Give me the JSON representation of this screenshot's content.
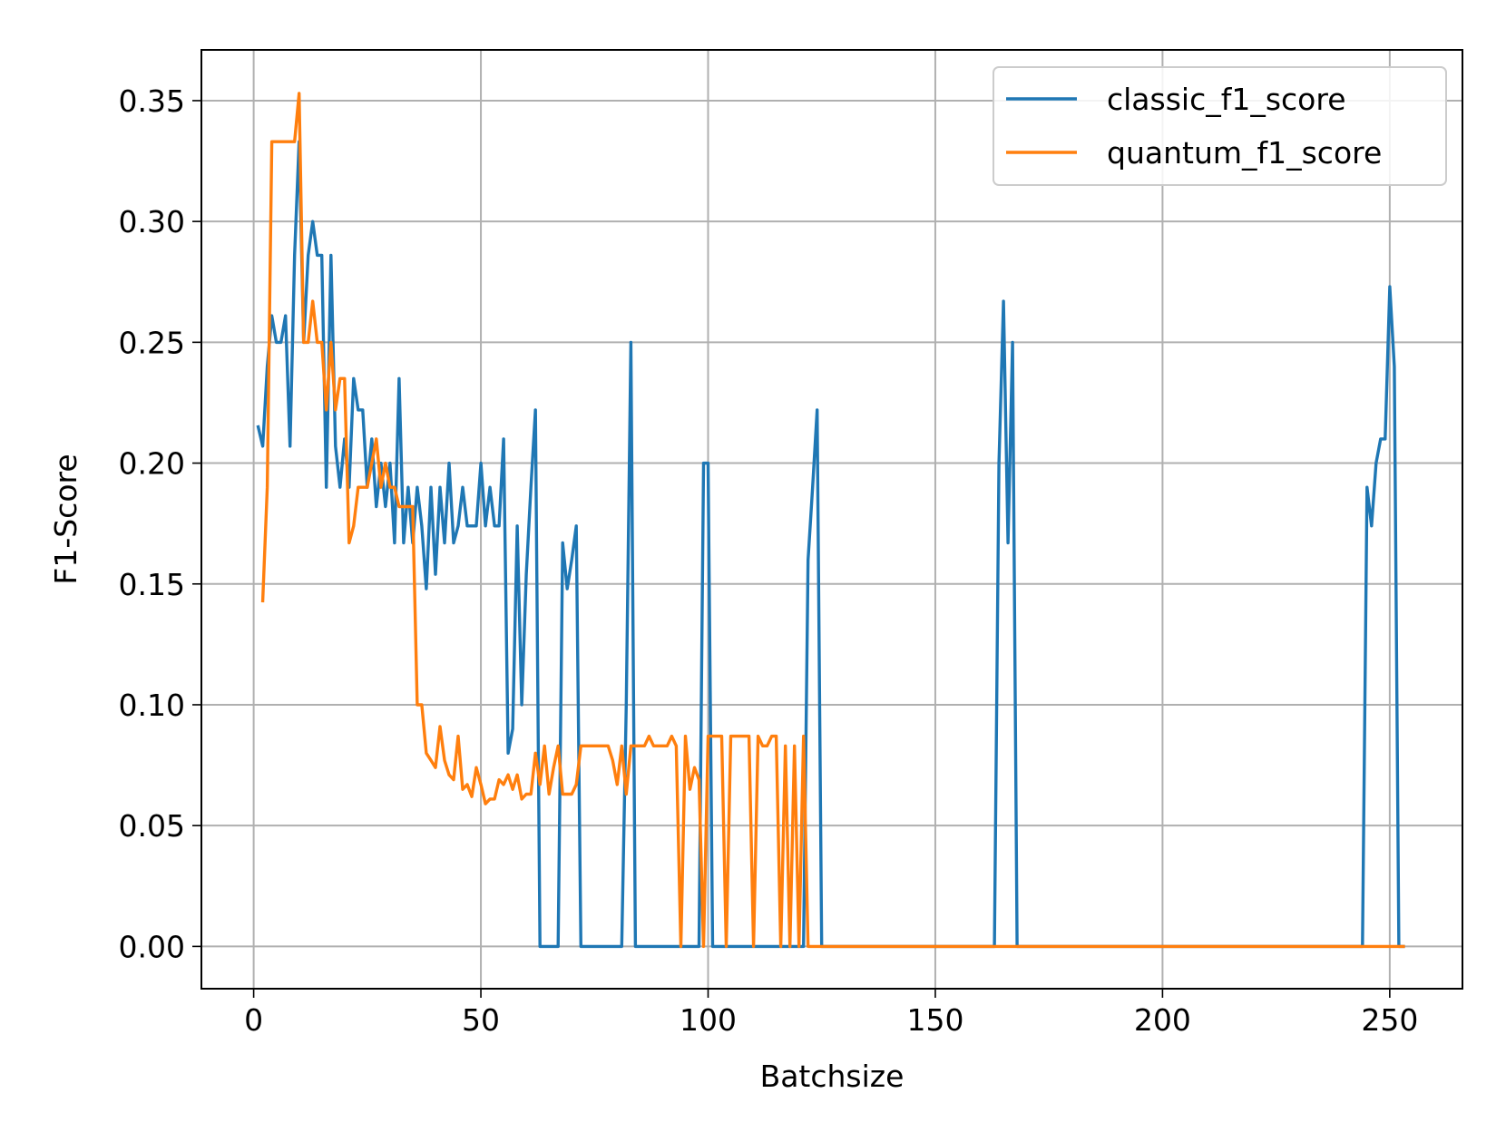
{
  "chart_data": {
    "type": "line",
    "title": "",
    "xlabel": "Batchsize",
    "ylabel": "F1-Score",
    "xlim": [
      -11.5,
      266
    ],
    "ylim": [
      -0.0175,
      0.371
    ],
    "xticks": [
      0,
      50,
      100,
      150,
      200,
      250
    ],
    "xtick_labels": [
      "0",
      "50",
      "100",
      "150",
      "200",
      "250"
    ],
    "yticks": [
      0.0,
      0.05,
      0.1,
      0.15,
      0.2,
      0.25,
      0.3,
      0.35
    ],
    "ytick_labels": [
      "0.00",
      "0.05",
      "0.10",
      "0.15",
      "0.20",
      "0.25",
      "0.30",
      "0.35"
    ],
    "grid": true,
    "legend_position": "top-right",
    "series": [
      {
        "name": "classic_f1_score",
        "color": "#1f77b4",
        "x": [
          1,
          2,
          3,
          4,
          5,
          6,
          7,
          8,
          9,
          10,
          11,
          12,
          13,
          14,
          15,
          16,
          17,
          18,
          19,
          20,
          21,
          22,
          23,
          24,
          25,
          26,
          27,
          28,
          29,
          30,
          31,
          32,
          33,
          34,
          35,
          36,
          37,
          38,
          39,
          40,
          41,
          42,
          43,
          44,
          45,
          46,
          47,
          48,
          49,
          50,
          51,
          52,
          53,
          54,
          55,
          56,
          57,
          58,
          59,
          60,
          61,
          62,
          63,
          64,
          65,
          66,
          67,
          68,
          69,
          70,
          71,
          72,
          73,
          80,
          81,
          82,
          83,
          84,
          85,
          98,
          99,
          100,
          101,
          102,
          121,
          122,
          123,
          124,
          125,
          126,
          163,
          164,
          165,
          166,
          167,
          168,
          244,
          245,
          246,
          247,
          248,
          249,
          250,
          251,
          252,
          253
        ],
        "y": [
          0.215,
          0.207,
          0.24,
          0.261,
          0.25,
          0.25,
          0.261,
          0.207,
          0.286,
          0.333,
          0.25,
          0.286,
          0.3,
          0.286,
          0.286,
          0.19,
          0.286,
          0.207,
          0.19,
          0.21,
          0.19,
          0.235,
          0.222,
          0.222,
          0.19,
          0.21,
          0.182,
          0.2,
          0.182,
          0.2,
          0.167,
          0.235,
          0.167,
          0.19,
          0.167,
          0.19,
          0.174,
          0.148,
          0.19,
          0.154,
          0.19,
          0.167,
          0.2,
          0.167,
          0.174,
          0.19,
          0.174,
          0.174,
          0.174,
          0.2,
          0.174,
          0.19,
          0.174,
          0.174,
          0.21,
          0.08,
          0.09,
          0.174,
          0.1,
          0.154,
          0.19,
          0.222,
          0.0,
          0.0,
          0.0,
          0.0,
          0.0,
          0.167,
          0.148,
          0.16,
          0.174,
          0.0,
          0.0,
          0.0,
          0.0,
          0.1,
          0.25,
          0.0,
          0.0,
          0.0,
          0.2,
          0.2,
          0.0,
          0.0,
          0.0,
          0.16,
          0.19,
          0.222,
          0.0,
          0.0,
          0.0,
          0.2,
          0.267,
          0.167,
          0.25,
          0.0,
          0.0,
          0.19,
          0.174,
          0.2,
          0.21,
          0.21,
          0.273,
          0.24,
          0.0,
          0.0
        ]
      },
      {
        "name": "quantum_f1_score",
        "color": "#ff7f0e",
        "x": [
          2,
          3,
          4,
          5,
          6,
          7,
          8,
          9,
          10,
          11,
          12,
          13,
          14,
          15,
          16,
          17,
          18,
          19,
          20,
          21,
          22,
          23,
          24,
          25,
          26,
          27,
          28,
          29,
          30,
          31,
          32,
          33,
          34,
          35,
          36,
          37,
          38,
          39,
          40,
          41,
          42,
          43,
          44,
          45,
          46,
          47,
          48,
          49,
          50,
          51,
          52,
          53,
          54,
          55,
          56,
          57,
          58,
          59,
          60,
          61,
          62,
          63,
          64,
          65,
          66,
          67,
          68,
          69,
          70,
          71,
          72,
          73,
          74,
          75,
          76,
          77,
          78,
          79,
          80,
          81,
          82,
          83,
          84,
          85,
          86,
          87,
          88,
          89,
          90,
          91,
          92,
          93,
          94,
          95,
          96,
          97,
          98,
          99,
          100,
          101,
          102,
          103,
          104,
          105,
          106,
          107,
          108,
          109,
          110,
          111,
          112,
          113,
          114,
          115,
          116,
          117,
          118,
          119,
          120,
          121,
          122,
          123,
          253
        ],
        "y": [
          0.143,
          0.19,
          0.333,
          0.333,
          0.333,
          0.333,
          0.333,
          0.333,
          0.353,
          0.25,
          0.25,
          0.267,
          0.25,
          0.25,
          0.222,
          0.25,
          0.222,
          0.235,
          0.235,
          0.167,
          0.174,
          0.19,
          0.19,
          0.19,
          0.2,
          0.21,
          0.19,
          0.2,
          0.19,
          0.19,
          0.182,
          0.182,
          0.182,
          0.182,
          0.1,
          0.1,
          0.08,
          0.077,
          0.074,
          0.091,
          0.077,
          0.071,
          0.069,
          0.087,
          0.065,
          0.067,
          0.062,
          0.074,
          0.067,
          0.059,
          0.061,
          0.061,
          0.069,
          0.067,
          0.071,
          0.065,
          0.071,
          0.061,
          0.063,
          0.063,
          0.08,
          0.067,
          0.083,
          0.063,
          0.074,
          0.083,
          0.063,
          0.063,
          0.063,
          0.067,
          0.083,
          0.083,
          0.083,
          0.083,
          0.083,
          0.083,
          0.083,
          0.077,
          0.067,
          0.083,
          0.063,
          0.083,
          0.083,
          0.083,
          0.083,
          0.087,
          0.083,
          0.083,
          0.083,
          0.083,
          0.087,
          0.083,
          0.0,
          0.087,
          0.065,
          0.074,
          0.069,
          0.0,
          0.087,
          0.087,
          0.087,
          0.087,
          0.0,
          0.087,
          0.087,
          0.087,
          0.087,
          0.087,
          0.0,
          0.087,
          0.083,
          0.083,
          0.087,
          0.087,
          0.0,
          0.083,
          0.0,
          0.083,
          0.0,
          0.087,
          0.0,
          0.0,
          0.0
        ]
      }
    ]
  }
}
